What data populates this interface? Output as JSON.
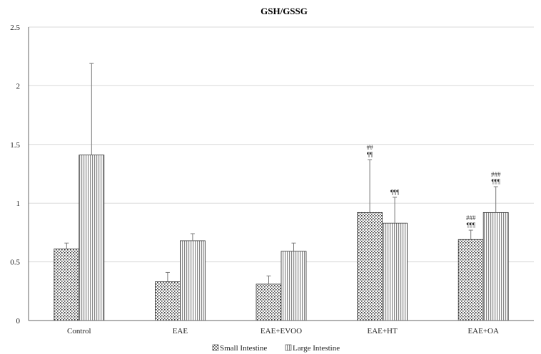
{
  "chart_data": {
    "type": "bar",
    "title": "GSH/GSSG",
    "categories": [
      "Control",
      "EAE",
      "EAE+EVOO",
      "EAE+HT",
      "EAE+OA"
    ],
    "ylim": [
      0,
      2.5
    ],
    "yticks": [
      "0",
      "0.5",
      "1",
      "1.5",
      "2",
      "2.5"
    ],
    "grid": true,
    "legend_position": "bottom",
    "series": [
      {
        "name": "Small Intestine",
        "values": [
          0.61,
          0.33,
          0.31,
          0.92,
          0.69
        ],
        "errors": [
          0.05,
          0.08,
          0.07,
          0.45,
          0.08
        ],
        "sig_line1": [
          "",
          "",
          "",
          "##",
          "###"
        ],
        "sig_line2": [
          "",
          "",
          "",
          "¶¶",
          "¶¶¶"
        ]
      },
      {
        "name": "Large Intestine",
        "values": [
          1.41,
          0.68,
          0.59,
          0.83,
          0.92
        ],
        "errors": [
          0.78,
          0.06,
          0.07,
          0.22,
          0.22
        ],
        "sig_line1": [
          "",
          "",
          "",
          "",
          "###"
        ],
        "sig_line2": [
          "",
          "",
          "",
          "¶¶¶",
          "¶¶¶"
        ]
      }
    ]
  }
}
